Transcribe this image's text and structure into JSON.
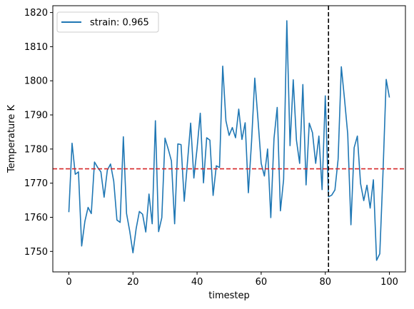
{
  "chart_data": {
    "type": "line",
    "title": "",
    "xlabel": "timestep",
    "ylabel": "Temperature K",
    "xlim": [
      -5,
      105
    ],
    "ylim": [
      1744,
      1822
    ],
    "xticks": [
      0,
      20,
      40,
      60,
      80,
      100
    ],
    "yticks": [
      1750,
      1760,
      1770,
      1780,
      1790,
      1800,
      1810,
      1820
    ],
    "grid": false,
    "legend_position": "top-left",
    "series": [
      {
        "name": "strain: 0.965",
        "color": "#1f77b4",
        "x": [
          0,
          1,
          2,
          3,
          4,
          5,
          6,
          7,
          8,
          9,
          10,
          11,
          12,
          13,
          14,
          15,
          16,
          17,
          18,
          19,
          20,
          21,
          22,
          23,
          24,
          25,
          26,
          27,
          28,
          29,
          30,
          31,
          32,
          33,
          34,
          35,
          36,
          37,
          38,
          39,
          40,
          41,
          42,
          43,
          44,
          45,
          46,
          47,
          48,
          49,
          50,
          51,
          52,
          53,
          54,
          55,
          56,
          57,
          58,
          59,
          60,
          61,
          62,
          63,
          64,
          65,
          66,
          67,
          68,
          69,
          70,
          71,
          72,
          73,
          74,
          75,
          76,
          77,
          78,
          79,
          80,
          81,
          82,
          83,
          84,
          85,
          86,
          87,
          88,
          89,
          90,
          91,
          92,
          93,
          94,
          95,
          96,
          97,
          98,
          99,
          100
        ],
        "y": [
          1761.5,
          1781.7,
          1772.6,
          1773.3,
          1751.6,
          1758.8,
          1762.9,
          1761.1,
          1776.2,
          1774.6,
          1773.3,
          1765.9,
          1773.8,
          1775.6,
          1770.6,
          1759.2,
          1758.5,
          1783.6,
          1761.1,
          1755.9,
          1749.6,
          1756.7,
          1761.7,
          1760.9,
          1755.7,
          1766.8,
          1758.1,
          1788.3,
          1755.8,
          1759.9,
          1783.2,
          1780.0,
          1776.5,
          1758.1,
          1781.5,
          1781.3,
          1764.7,
          1776.1,
          1787.6,
          1771.5,
          1780.2,
          1790.5,
          1770.1,
          1783.3,
          1782.6,
          1766.4,
          1775.1,
          1774.6,
          1804.3,
          1788.3,
          1784.0,
          1786.3,
          1783.3,
          1791.7,
          1782.8,
          1787.7,
          1767.2,
          1782.2,
          1800.8,
          1788.7,
          1775.8,
          1772.1,
          1780.0,
          1759.9,
          1783.1,
          1792.2,
          1761.9,
          1771.1,
          1817.6,
          1781.0,
          1800.3,
          1782.6,
          1775.8,
          1798.9,
          1769.5,
          1787.6,
          1784.8,
          1775.8,
          1783.8,
          1768.1,
          1795.6,
          1766.0,
          1766.5,
          1768.0,
          1777.0,
          1804.1,
          1794.6,
          1784.4,
          1757.8,
          1780.4,
          1783.8,
          1769.9,
          1764.9,
          1769.4,
          1762.7,
          1771.0,
          1747.4,
          1749.3,
          1773.0,
          1800.4,
          1795.1
        ]
      }
    ],
    "reference_lines": [
      {
        "orientation": "horizontal",
        "value": 1774.2,
        "color": "#d62728",
        "style": "dashed"
      },
      {
        "orientation": "vertical",
        "value": 81,
        "color": "#000000",
        "style": "dashed"
      }
    ]
  }
}
